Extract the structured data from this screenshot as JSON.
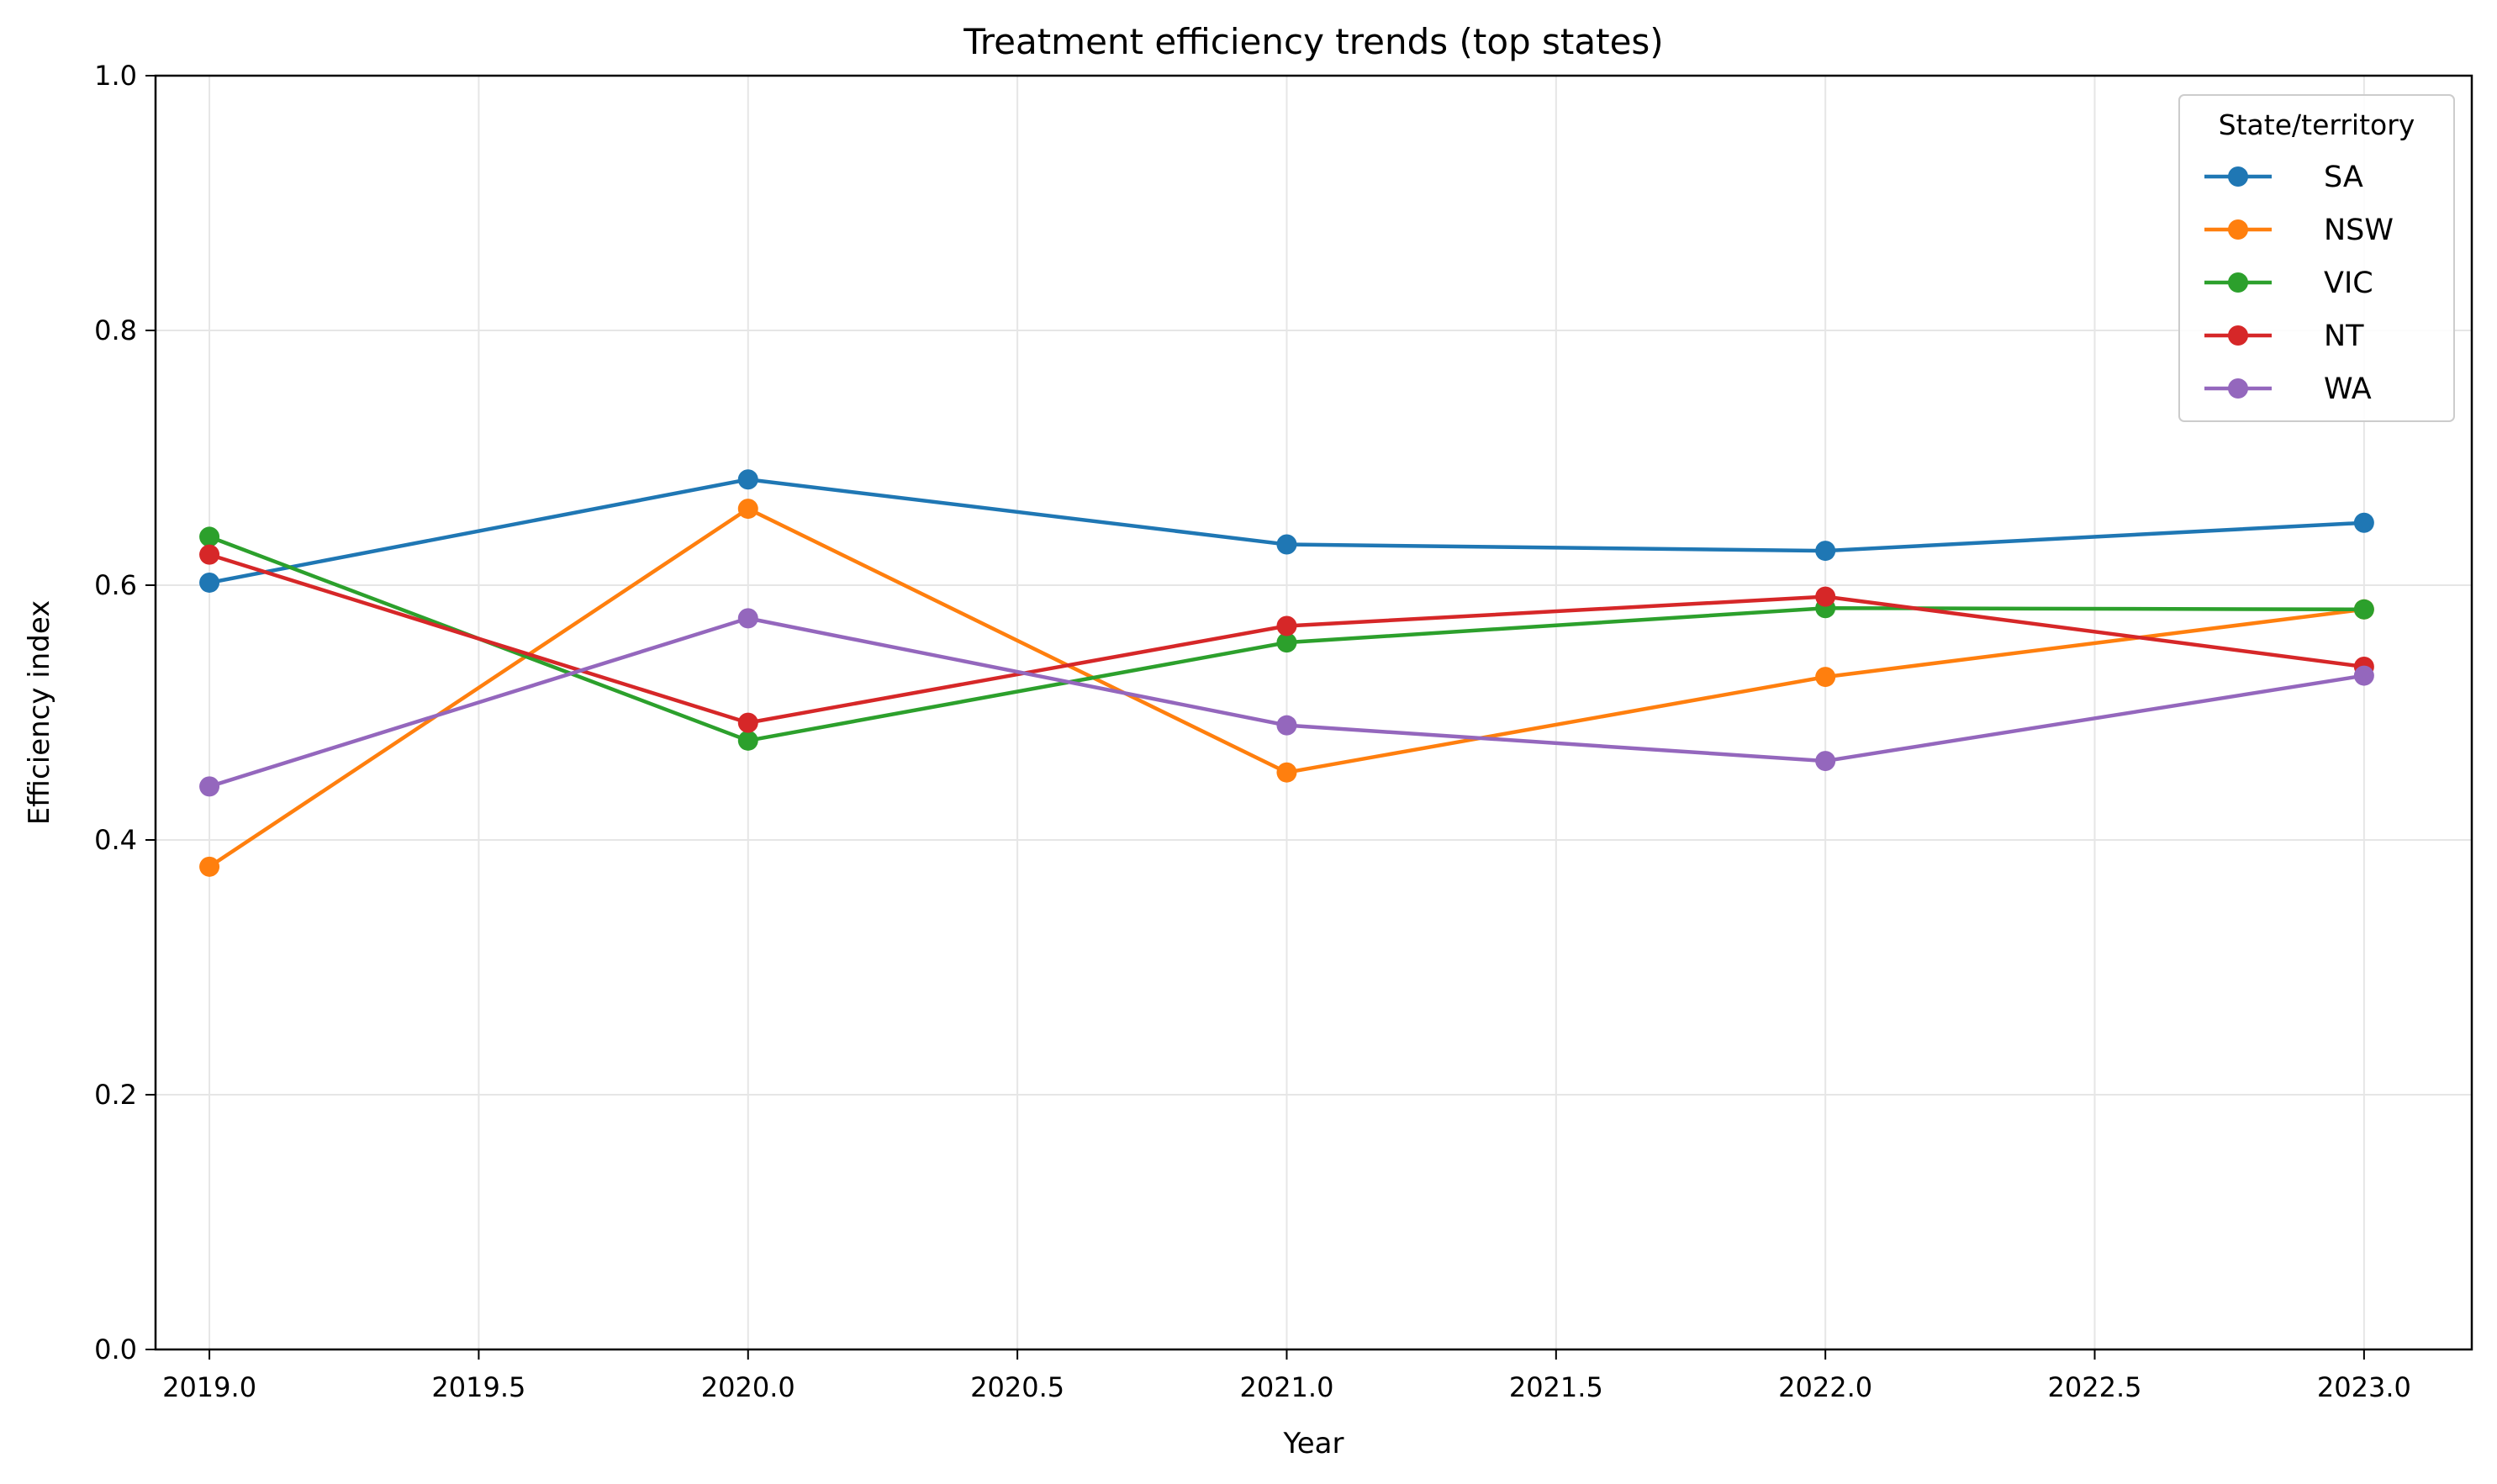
{
  "chart_data": {
    "type": "line",
    "title": "Treatment efficiency trends (top states)",
    "xlabel": "Year",
    "ylabel": "Efficiency index",
    "x": [
      2019,
      2020,
      2021,
      2022,
      2023
    ],
    "xlim": [
      2018.9,
      2023.2
    ],
    "ylim": [
      0,
      1
    ],
    "x_ticks": [
      "2019.0",
      "2019.5",
      "2020.0",
      "2020.5",
      "2021.0",
      "2021.5",
      "2022.0",
      "2022.5",
      "2023.0"
    ],
    "y_ticks": [
      "0.0",
      "0.2",
      "0.4",
      "0.6",
      "0.8",
      "1.0"
    ],
    "grid": true,
    "legend": {
      "title": "State/territory",
      "placement": "top-right"
    },
    "series": [
      {
        "name": "SA",
        "color": "#1f77b4",
        "values": [
          0.602,
          0.683,
          0.632,
          0.627,
          0.649
        ]
      },
      {
        "name": "NSW",
        "color": "#ff7f0e",
        "values": [
          0.379,
          0.66,
          0.453,
          0.528,
          0.581
        ]
      },
      {
        "name": "VIC",
        "color": "#2ca02c",
        "values": [
          0.638,
          0.478,
          0.555,
          0.582,
          0.581
        ]
      },
      {
        "name": "NT",
        "color": "#d62728",
        "values": [
          0.624,
          0.492,
          0.568,
          0.591,
          0.536
        ]
      },
      {
        "name": "WA",
        "color": "#9467bd",
        "values": [
          0.442,
          0.574,
          0.49,
          0.462,
          0.529
        ]
      }
    ]
  }
}
